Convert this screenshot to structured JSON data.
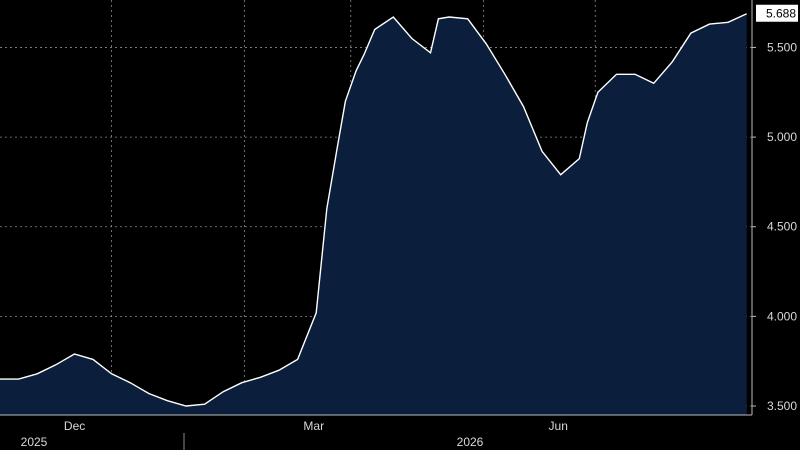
{
  "chart_data": {
    "type": "area",
    "series": [
      {
        "x": [
          "2025-10-27",
          "2025-11-03",
          "2025-11-10",
          "2025-11-17",
          "2025-11-24",
          "2025-12-01",
          "2025-12-08",
          "2025-12-15",
          "2025-12-22",
          "2025-12-29",
          "2026-01-05",
          "2026-01-12",
          "2026-01-19",
          "2026-01-26",
          "2026-02-02",
          "2026-02-09",
          "2026-02-16",
          "2026-02-20",
          "2026-02-24",
          "2026-02-27",
          "2026-03-03",
          "2026-03-06",
          "2026-03-10",
          "2026-03-17",
          "2026-03-24",
          "2026-03-31",
          "2026-04-03",
          "2026-04-07",
          "2026-04-14",
          "2026-04-21",
          "2026-04-28",
          "2026-05-05",
          "2026-05-12",
          "2026-05-19",
          "2026-05-26",
          "2026-05-29",
          "2026-06-02",
          "2026-06-09",
          "2026-06-16",
          "2026-06-23",
          "2026-06-30",
          "2026-07-07",
          "2026-07-14",
          "2026-07-21",
          "2026-07-28"
        ],
        "values": [
          3.65,
          3.68,
          3.73,
          3.79,
          3.76,
          3.68,
          3.63,
          3.57,
          3.53,
          3.5,
          3.51,
          3.58,
          3.63,
          3.66,
          3.7,
          3.76,
          4.02,
          4.6,
          4.95,
          5.2,
          5.37,
          5.46,
          5.6,
          5.67,
          5.55,
          5.47,
          5.66,
          5.67,
          5.66,
          5.52,
          5.35,
          5.17,
          4.92,
          4.79,
          4.88,
          5.08,
          5.25,
          5.35,
          5.35,
          5.3,
          5.42,
          5.58,
          5.63,
          5.64,
          5.688
        ]
      }
    ],
    "x_labels_month": [
      "Dec",
      "Mar",
      "Jun"
    ],
    "x_labels_year": [
      "2025",
      "2026"
    ],
    "y_ticks": [
      "3.500",
      "4.000",
      "4.500",
      "5.000",
      "5.500"
    ],
    "ylim": [
      3.45,
      5.72
    ],
    "last_value_label": "5.688",
    "grid": true,
    "colors": {
      "fill": "#0b1f3d",
      "line": "#ffffff",
      "background": "#000000",
      "grid": "#8a8a8a",
      "label_bg": "#ffffff"
    }
  }
}
